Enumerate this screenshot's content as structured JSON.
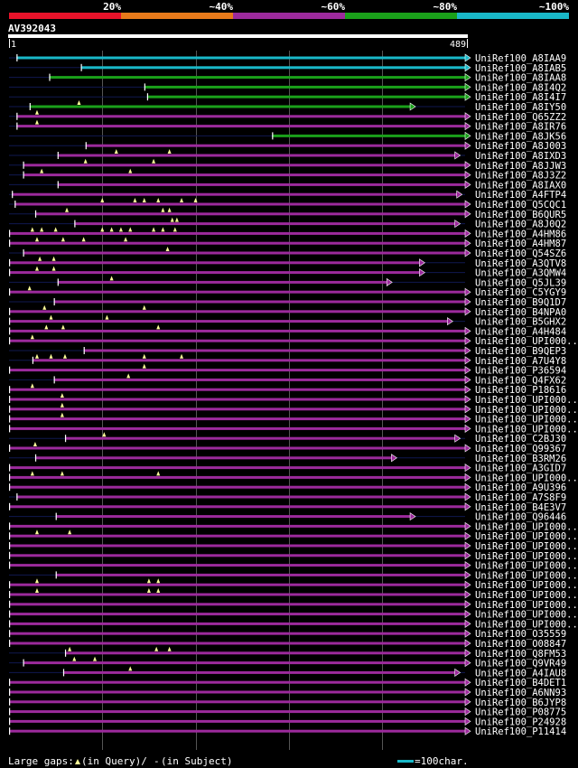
{
  "scale_labels": [
    "20%",
    "~40%",
    "~60%",
    "~80%",
    "~100%"
  ],
  "scale_colors": [
    "#e8132a",
    "#e87a1a",
    "#9c2a9c",
    "#1aa01a",
    "#19b8c8"
  ],
  "query": {
    "id": "AV392043",
    "start": "1",
    "end": "489",
    "length": 489
  },
  "colors": {
    "cyan": "#19b8c8",
    "green": "#1aa01a",
    "purple": "#9c2a9c",
    "thin": "#101850",
    "gap": "#ffff99",
    "grid": "#555555"
  },
  "legend": {
    "gaps_text": "Large gaps:",
    "query_text": "(in Query)/",
    "subject_text": "(in Subject)",
    "dash": "-",
    "scale_text": "=100char."
  },
  "hits": [
    {
      "name": "UniRef100_A8IAA9",
      "color": "cyan",
      "start": 8,
      "end": 489,
      "arrow": "right",
      "gaps": []
    },
    {
      "name": "UniRef100_A8IAB5",
      "color": "cyan",
      "start": 77,
      "end": 489,
      "arrow": "right",
      "gaps": []
    },
    {
      "name": "UniRef100_A8IAA8",
      "color": "green",
      "start": 43,
      "end": 489,
      "arrow": "right",
      "gaps": []
    },
    {
      "name": "UniRef100_A8I4Q2",
      "color": "green",
      "start": 145,
      "end": 489,
      "arrow": "right",
      "gaps": []
    },
    {
      "name": "UniRef100_A8I4I7",
      "color": "green",
      "start": 148,
      "end": 489,
      "arrow": "right",
      "gaps": []
    },
    {
      "name": "UniRef100_A8IY50",
      "color": "green",
      "start": 22,
      "end": 430,
      "arrow": "right",
      "gaps": [
        75
      ]
    },
    {
      "name": "UniRef100_Q65ZZ2",
      "color": "purple",
      "start": 8,
      "end": 489,
      "arrow": "right",
      "gaps": [
        30
      ]
    },
    {
      "name": "UniRef100_A8IR76",
      "color": "purple",
      "start": 8,
      "end": 489,
      "arrow": "right",
      "gaps": [
        30
      ]
    },
    {
      "name": "UniRef100_A8JK56",
      "color": "green",
      "start": 282,
      "end": 489,
      "arrow": "right",
      "gaps": []
    },
    {
      "name": "UniRef100_A8J003",
      "color": "purple",
      "start": 82,
      "end": 489,
      "arrow": "right",
      "gaps": []
    },
    {
      "name": "UniRef100_A8IXD3",
      "color": "purple",
      "start": 52,
      "end": 478,
      "arrow": "right",
      "gaps": [
        115,
        172
      ]
    },
    {
      "name": "UniRef100_A8JJW3",
      "color": "purple",
      "start": 15,
      "end": 489,
      "arrow": "right",
      "gaps": [
        82,
        155
      ]
    },
    {
      "name": "UniRef100_A8J3Z2",
      "color": "purple",
      "start": 15,
      "end": 489,
      "arrow": "right",
      "gaps": [
        35,
        130
      ]
    },
    {
      "name": "UniRef100_A8IAX0",
      "color": "purple",
      "start": 52,
      "end": 489,
      "arrow": "right",
      "gaps": []
    },
    {
      "name": "UniRef100_A4FTP4",
      "color": "purple",
      "start": 3,
      "end": 480,
      "arrow": "right",
      "gaps": []
    },
    {
      "name": "UniRef100_Q5CQC1",
      "color": "purple",
      "start": 6,
      "end": 489,
      "arrow": "right",
      "gaps": [
        100,
        135,
        145,
        160,
        185,
        200
      ]
    },
    {
      "name": "UniRef100_B6QUR5",
      "color": "purple",
      "start": 28,
      "end": 489,
      "arrow": "right",
      "gaps": [
        62,
        165,
        172
      ]
    },
    {
      "name": "UniRef100_A8J0Q2",
      "color": "purple",
      "start": 70,
      "end": 478,
      "arrow": "right",
      "gaps": [
        175,
        180
      ]
    },
    {
      "name": "UniRef100_A4HM86",
      "color": "purple",
      "start": 0,
      "end": 489,
      "arrow": "right",
      "gaps": [
        25,
        35,
        50,
        100,
        110,
        120,
        130,
        155,
        165,
        178
      ]
    },
    {
      "name": "UniRef100_A4HM87",
      "color": "purple",
      "start": 0,
      "end": 489,
      "arrow": "right",
      "gaps": [
        30,
        58,
        80,
        125
      ]
    },
    {
      "name": "UniRef100_Q54SZ6",
      "color": "purple",
      "start": 15,
      "end": 489,
      "arrow": "right",
      "gaps": [
        170
      ]
    },
    {
      "name": "UniRef100_A3QTV8",
      "color": "purple",
      "start": 0,
      "end": 440,
      "arrow": "right",
      "gaps": [
        33,
        48
      ]
    },
    {
      "name": "UniRef100_A3QMW4",
      "color": "purple",
      "start": 0,
      "end": 440,
      "arrow": "right",
      "gaps": [
        30,
        48
      ]
    },
    {
      "name": "UniRef100_Q5JL39",
      "color": "purple",
      "start": 52,
      "end": 405,
      "arrow": "right",
      "gaps": [
        110
      ]
    },
    {
      "name": "UniRef100_C5YGY9",
      "color": "purple",
      "start": 0,
      "end": 489,
      "arrow": "right",
      "gaps": [
        22
      ]
    },
    {
      "name": "UniRef100_B9Q1D7",
      "color": "purple",
      "start": 48,
      "end": 489,
      "arrow": "right",
      "gaps": []
    },
    {
      "name": "UniRef100_B4NPA0",
      "color": "purple",
      "start": 0,
      "end": 489,
      "arrow": "right",
      "gaps": [
        38,
        145
      ]
    },
    {
      "name": "UniRef100_B5GHX2",
      "color": "purple",
      "start": 0,
      "end": 470,
      "arrow": "right",
      "gaps": [
        45,
        105
      ]
    },
    {
      "name": "UniRef100_A4H484",
      "color": "purple",
      "start": 0,
      "end": 489,
      "arrow": "right",
      "gaps": [
        40,
        58,
        160
      ]
    },
    {
      "name": "UniRef100_UPI000..",
      "color": "purple",
      "start": 0,
      "end": 489,
      "arrow": "right",
      "gaps": [
        25
      ]
    },
    {
      "name": "UniRef100_B9QEP3",
      "color": "purple",
      "start": 80,
      "end": 489,
      "arrow": "right",
      "gaps": []
    },
    {
      "name": "UniRef100_A7U4Y8",
      "color": "purple",
      "start": 25,
      "end": 489,
      "arrow": "right",
      "gaps": [
        30,
        45,
        60,
        145,
        185
      ]
    },
    {
      "name": "UniRef100_P36594",
      "color": "purple",
      "start": 0,
      "end": 489,
      "arrow": "right",
      "gaps": [
        145
      ]
    },
    {
      "name": "UniRef100_Q4FX62",
      "color": "purple",
      "start": 48,
      "end": 489,
      "arrow": "right",
      "gaps": [
        128
      ]
    },
    {
      "name": "UniRef100_P18616",
      "color": "purple",
      "start": 0,
      "end": 489,
      "arrow": "right",
      "gaps": [
        25
      ]
    },
    {
      "name": "UniRef100_UPI000..",
      "color": "purple",
      "start": 0,
      "end": 489,
      "arrow": "right",
      "gaps": [
        57
      ]
    },
    {
      "name": "UniRef100_UPI000..",
      "color": "purple",
      "start": 0,
      "end": 489,
      "arrow": "right",
      "gaps": [
        57
      ]
    },
    {
      "name": "UniRef100_UPI000..",
      "color": "purple",
      "start": 0,
      "end": 489,
      "arrow": "right",
      "gaps": [
        57
      ]
    },
    {
      "name": "UniRef100_UPI000..",
      "color": "purple",
      "start": 0,
      "end": 489,
      "arrow": "right",
      "gaps": []
    },
    {
      "name": "UniRef100_C2BJ30",
      "color": "purple",
      "start": 60,
      "end": 478,
      "arrow": "right",
      "gaps": [
        102
      ]
    },
    {
      "name": "UniRef100_Q99367",
      "color": "purple",
      "start": 0,
      "end": 489,
      "arrow": "right",
      "gaps": [
        28
      ]
    },
    {
      "name": "UniRef100_B3RM26",
      "color": "purple",
      "start": 28,
      "end": 410,
      "arrow": "right",
      "gaps": []
    },
    {
      "name": "UniRef100_A3GID7",
      "color": "purple",
      "start": 0,
      "end": 489,
      "arrow": "right",
      "gaps": []
    },
    {
      "name": "UniRef100_UPI000..",
      "color": "purple",
      "start": 0,
      "end": 489,
      "arrow": "right",
      "gaps": [
        25,
        57,
        160
      ]
    },
    {
      "name": "UniRef100_A9U396",
      "color": "purple",
      "start": 0,
      "end": 489,
      "arrow": "right",
      "gaps": []
    },
    {
      "name": "UniRef100_A7S8F9",
      "color": "purple",
      "start": 8,
      "end": 489,
      "arrow": "right",
      "gaps": []
    },
    {
      "name": "UniRef100_B4E3V7",
      "color": "purple",
      "start": 0,
      "end": 489,
      "arrow": "right",
      "gaps": []
    },
    {
      "name": "UniRef100_Q96446",
      "color": "purple",
      "start": 50,
      "end": 430,
      "arrow": "right",
      "gaps": []
    },
    {
      "name": "UniRef100_UPI000..",
      "color": "purple",
      "start": 0,
      "end": 489,
      "arrow": "right",
      "gaps": []
    },
    {
      "name": "UniRef100_UPI000..",
      "color": "purple",
      "start": 0,
      "end": 489,
      "arrow": "right",
      "gaps": [
        30,
        65
      ]
    },
    {
      "name": "UniRef100_UPI000..",
      "color": "purple",
      "start": 0,
      "end": 489,
      "arrow": "right",
      "gaps": []
    },
    {
      "name": "UniRef100_UPI000..",
      "color": "purple",
      "start": 0,
      "end": 489,
      "arrow": "right",
      "gaps": []
    },
    {
      "name": "UniRef100_UPI000..",
      "color": "purple",
      "start": 0,
      "end": 489,
      "arrow": "right",
      "gaps": []
    },
    {
      "name": "UniRef100_UPI000..",
      "color": "purple",
      "start": 50,
      "end": 489,
      "arrow": "right",
      "gaps": []
    },
    {
      "name": "UniRef100_UPI000..",
      "color": "purple",
      "start": 0,
      "end": 489,
      "arrow": "right",
      "gaps": [
        30,
        150,
        160
      ]
    },
    {
      "name": "UniRef100_UPI000..",
      "color": "purple",
      "start": 0,
      "end": 489,
      "arrow": "right",
      "gaps": [
        30,
        150,
        160
      ]
    },
    {
      "name": "UniRef100_UPI000..",
      "color": "purple",
      "start": 0,
      "end": 489,
      "arrow": "right",
      "gaps": []
    },
    {
      "name": "UniRef100_UPI000..",
      "color": "purple",
      "start": 0,
      "end": 489,
      "arrow": "right",
      "gaps": []
    },
    {
      "name": "UniRef100_UPI000..",
      "color": "purple",
      "start": 0,
      "end": 489,
      "arrow": "right",
      "gaps": []
    },
    {
      "name": "UniRef100_O35559",
      "color": "purple",
      "start": 0,
      "end": 489,
      "arrow": "right",
      "gaps": []
    },
    {
      "name": "UniRef100_O08847",
      "color": "purple",
      "start": 0,
      "end": 489,
      "arrow": "right",
      "gaps": []
    },
    {
      "name": "UniRef100_Q8FM53",
      "color": "purple",
      "start": 60,
      "end": 489,
      "arrow": "right",
      "gaps": [
        65,
        158,
        172
      ]
    },
    {
      "name": "UniRef100_Q9VR49",
      "color": "purple",
      "start": 15,
      "end": 489,
      "arrow": "right",
      "gaps": [
        70,
        92
      ]
    },
    {
      "name": "UniRef100_A4IAU8",
      "color": "purple",
      "start": 58,
      "end": 478,
      "arrow": "right",
      "gaps": [
        130
      ]
    },
    {
      "name": "UniRef100_B4DET1",
      "color": "purple",
      "start": 0,
      "end": 489,
      "arrow": "right",
      "gaps": []
    },
    {
      "name": "UniRef100_A6NN93",
      "color": "purple",
      "start": 0,
      "end": 489,
      "arrow": "right",
      "gaps": []
    },
    {
      "name": "UniRef100_B6JYP8",
      "color": "purple",
      "start": 0,
      "end": 489,
      "arrow": "right",
      "gaps": []
    },
    {
      "name": "UniRef100_P08775",
      "color": "purple",
      "start": 0,
      "end": 489,
      "arrow": "right",
      "gaps": []
    },
    {
      "name": "UniRef100_P24928",
      "color": "purple",
      "start": 0,
      "end": 489,
      "arrow": "right",
      "gaps": []
    },
    {
      "name": "UniRef100_P11414",
      "color": "purple",
      "start": 0,
      "end": 489,
      "arrow": "right",
      "gaps": []
    }
  ]
}
